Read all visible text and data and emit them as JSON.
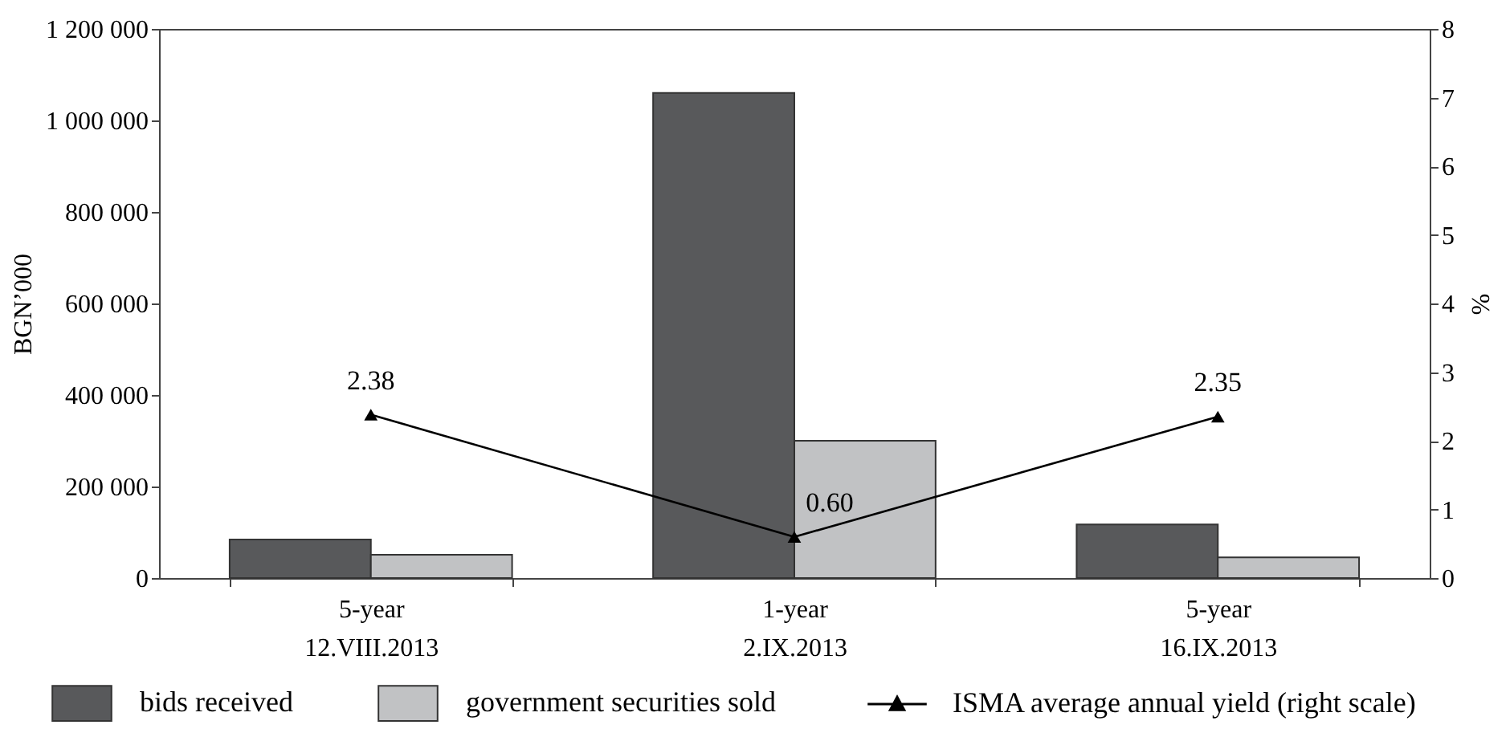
{
  "chart_data": {
    "type": "bar",
    "categories": [
      "5-year\n12.VIII.2013",
      "1-year\n2.IX.2013",
      "5-year\n16.IX.2013"
    ],
    "ylabel": "BGN’000",
    "y2label": "%",
    "series": [
      {
        "name": "bids received",
        "color": "#58595b",
        "values": [
          84000,
          1060000,
          117000
        ]
      },
      {
        "name": "government securities sold",
        "color": "#c1c2c4",
        "values": [
          51000,
          300000,
          45000
        ]
      },
      {
        "name": "ISMA average annual yield (right scale)",
        "type": "line",
        "axis": "y2",
        "color": "#000000",
        "values": [
          2.38,
          0.6,
          2.35
        ],
        "value_labels": [
          "2.38",
          "0.60",
          "2.35"
        ]
      }
    ],
    "ylim": [
      0,
      1200000
    ],
    "yticks": [
      0,
      {
        "value": 200000,
        "label": "200 000"
      },
      {
        "value": 400000,
        "label": "400 000"
      },
      {
        "value": 600000,
        "label": "600 000"
      },
      {
        "value": 800000,
        "label": "800 000"
      },
      {
        "value": 1000000,
        "label": "1 000 000"
      },
      {
        "value": 1200000,
        "label": "1 200 000"
      }
    ],
    "y2lim": [
      0,
      8
    ],
    "y2ticks": [
      0,
      1,
      2,
      3,
      4,
      5,
      6,
      7,
      8
    ],
    "marker": "triangle",
    "legend": "bottom"
  }
}
